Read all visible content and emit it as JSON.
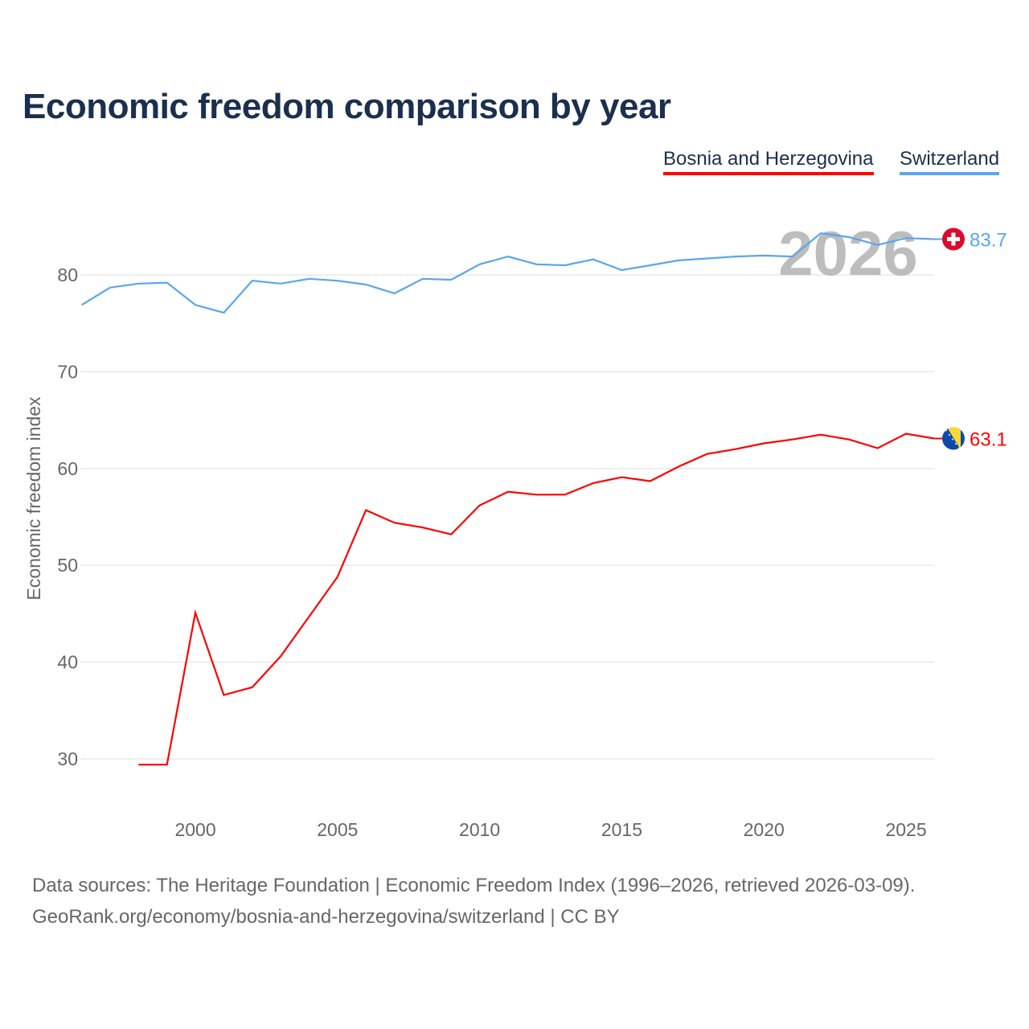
{
  "title": "Economic freedom comparison by year",
  "footer": {
    "line1": "Data sources: The Heritage Foundation | Economic Freedom Index (1996–2026, retrieved 2026-03-09).",
    "line2": "GeoRank.org/economy/bosnia-and-herzegovina/switzerland | CC BY"
  },
  "chart_data": {
    "type": "line",
    "title": "Economic freedom comparison by year",
    "xlabel": "",
    "ylabel": "Economic freedom index",
    "xlim": [
      1996,
      2026
    ],
    "ylim": [
      25,
      87
    ],
    "x_ticks": [
      2000,
      2005,
      2010,
      2015,
      2020,
      2025
    ],
    "y_ticks": [
      30,
      40,
      50,
      60,
      70,
      80
    ],
    "grid": true,
    "legend_placement": "top-right",
    "watermark_year": "2026",
    "series": [
      {
        "name": "Bosnia and Herzegovina",
        "color": "#ff0000",
        "end_label": "63.1",
        "flag": "bosnia-flag",
        "x": [
          1998,
          1999,
          2000,
          2001,
          2002,
          2003,
          2004,
          2005,
          2006,
          2007,
          2008,
          2009,
          2010,
          2011,
          2012,
          2013,
          2014,
          2015,
          2016,
          2017,
          2018,
          2019,
          2020,
          2021,
          2022,
          2023,
          2024,
          2025,
          2026
        ],
        "values": [
          29.4,
          29.4,
          45.1,
          36.6,
          37.4,
          40.6,
          44.7,
          48.8,
          55.7,
          54.4,
          53.9,
          53.2,
          56.2,
          57.6,
          57.3,
          57.3,
          58.5,
          59.1,
          58.7,
          60.2,
          61.5,
          62.0,
          62.6,
          63.0,
          63.5,
          63.0,
          62.1,
          63.6,
          63.1
        ]
      },
      {
        "name": "Switzerland",
        "color": "#5aa6ed",
        "end_label": "83.7",
        "flag": "switzerland-flag",
        "x": [
          1996,
          1997,
          1998,
          1999,
          2000,
          2001,
          2002,
          2003,
          2004,
          2005,
          2006,
          2007,
          2008,
          2009,
          2010,
          2011,
          2012,
          2013,
          2014,
          2015,
          2016,
          2017,
          2018,
          2019,
          2020,
          2021,
          2022,
          2023,
          2024,
          2025,
          2026
        ],
        "values": [
          76.9,
          78.7,
          79.1,
          79.2,
          76.9,
          76.1,
          79.4,
          79.1,
          79.6,
          79.4,
          79.0,
          78.1,
          79.6,
          79.5,
          81.1,
          81.9,
          81.1,
          81.0,
          81.6,
          80.5,
          81.0,
          81.5,
          81.7,
          81.9,
          82.0,
          81.9,
          84.3,
          83.9,
          83.1,
          83.8,
          83.7
        ]
      }
    ]
  }
}
